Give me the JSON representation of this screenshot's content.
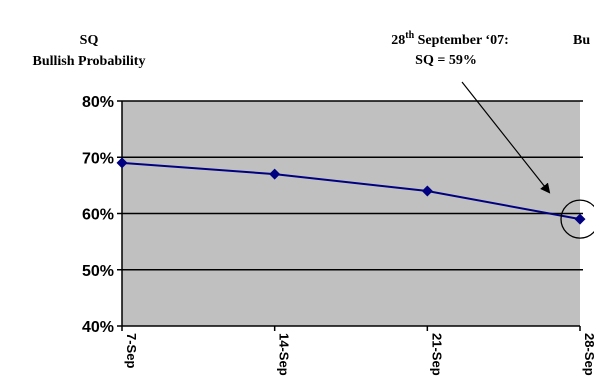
{
  "title": {
    "line1": "SQ",
    "line2": "Bullish Probability"
  },
  "annotation": {
    "date_base": "28",
    "date_sup": "th",
    "date_rest": " September ‘07:",
    "value": "SQ = 59%"
  },
  "right_partial_text": "Bu",
  "chart_data": {
    "type": "line",
    "categories": [
      "7-Sep",
      "14-Sep",
      "21-Sep",
      "28-Sep"
    ],
    "series": [
      {
        "values": [
          69,
          67,
          64,
          59
        ]
      }
    ],
    "y_ticks": [
      "40%",
      "50%",
      "60%",
      "70%",
      "80%"
    ],
    "ylim": [
      40,
      80
    ],
    "grid": true,
    "highlight_point": "28-Sep",
    "colors": {
      "plot_bg": "#c0c0c0",
      "line": "#000080",
      "grid": "#000000"
    }
  }
}
